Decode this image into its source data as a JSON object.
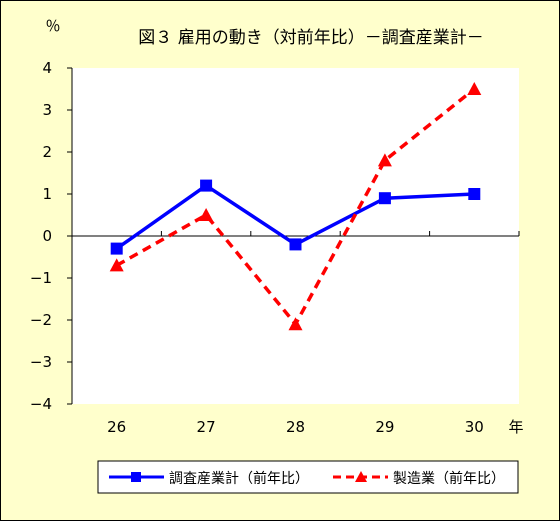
{
  "chart_data": {
    "type": "line",
    "title": "図３ 雇用の動き（対前年比）－調査産業計－",
    "ylabel": "％",
    "xlabel": "年",
    "categories": [
      "26",
      "27",
      "28",
      "29",
      "30"
    ],
    "ylim": [
      -4,
      4
    ],
    "yticks": [
      "4",
      "3",
      "2",
      "1",
      "0",
      "−1",
      "−2",
      "−3",
      "−4"
    ],
    "grid": false,
    "legend_position": "bottom",
    "series": [
      {
        "name": "調査産業計（前年比）",
        "values": [
          -0.3,
          1.2,
          -0.2,
          0.9,
          1.0
        ],
        "color": "#0000ff",
        "marker": "square",
        "line": "solid"
      },
      {
        "name": "製造業（前年比）",
        "values": [
          -0.7,
          0.5,
          -2.1,
          1.8,
          3.5
        ],
        "color": "#ff0000",
        "marker": "triangle",
        "line": "dashed"
      }
    ]
  }
}
